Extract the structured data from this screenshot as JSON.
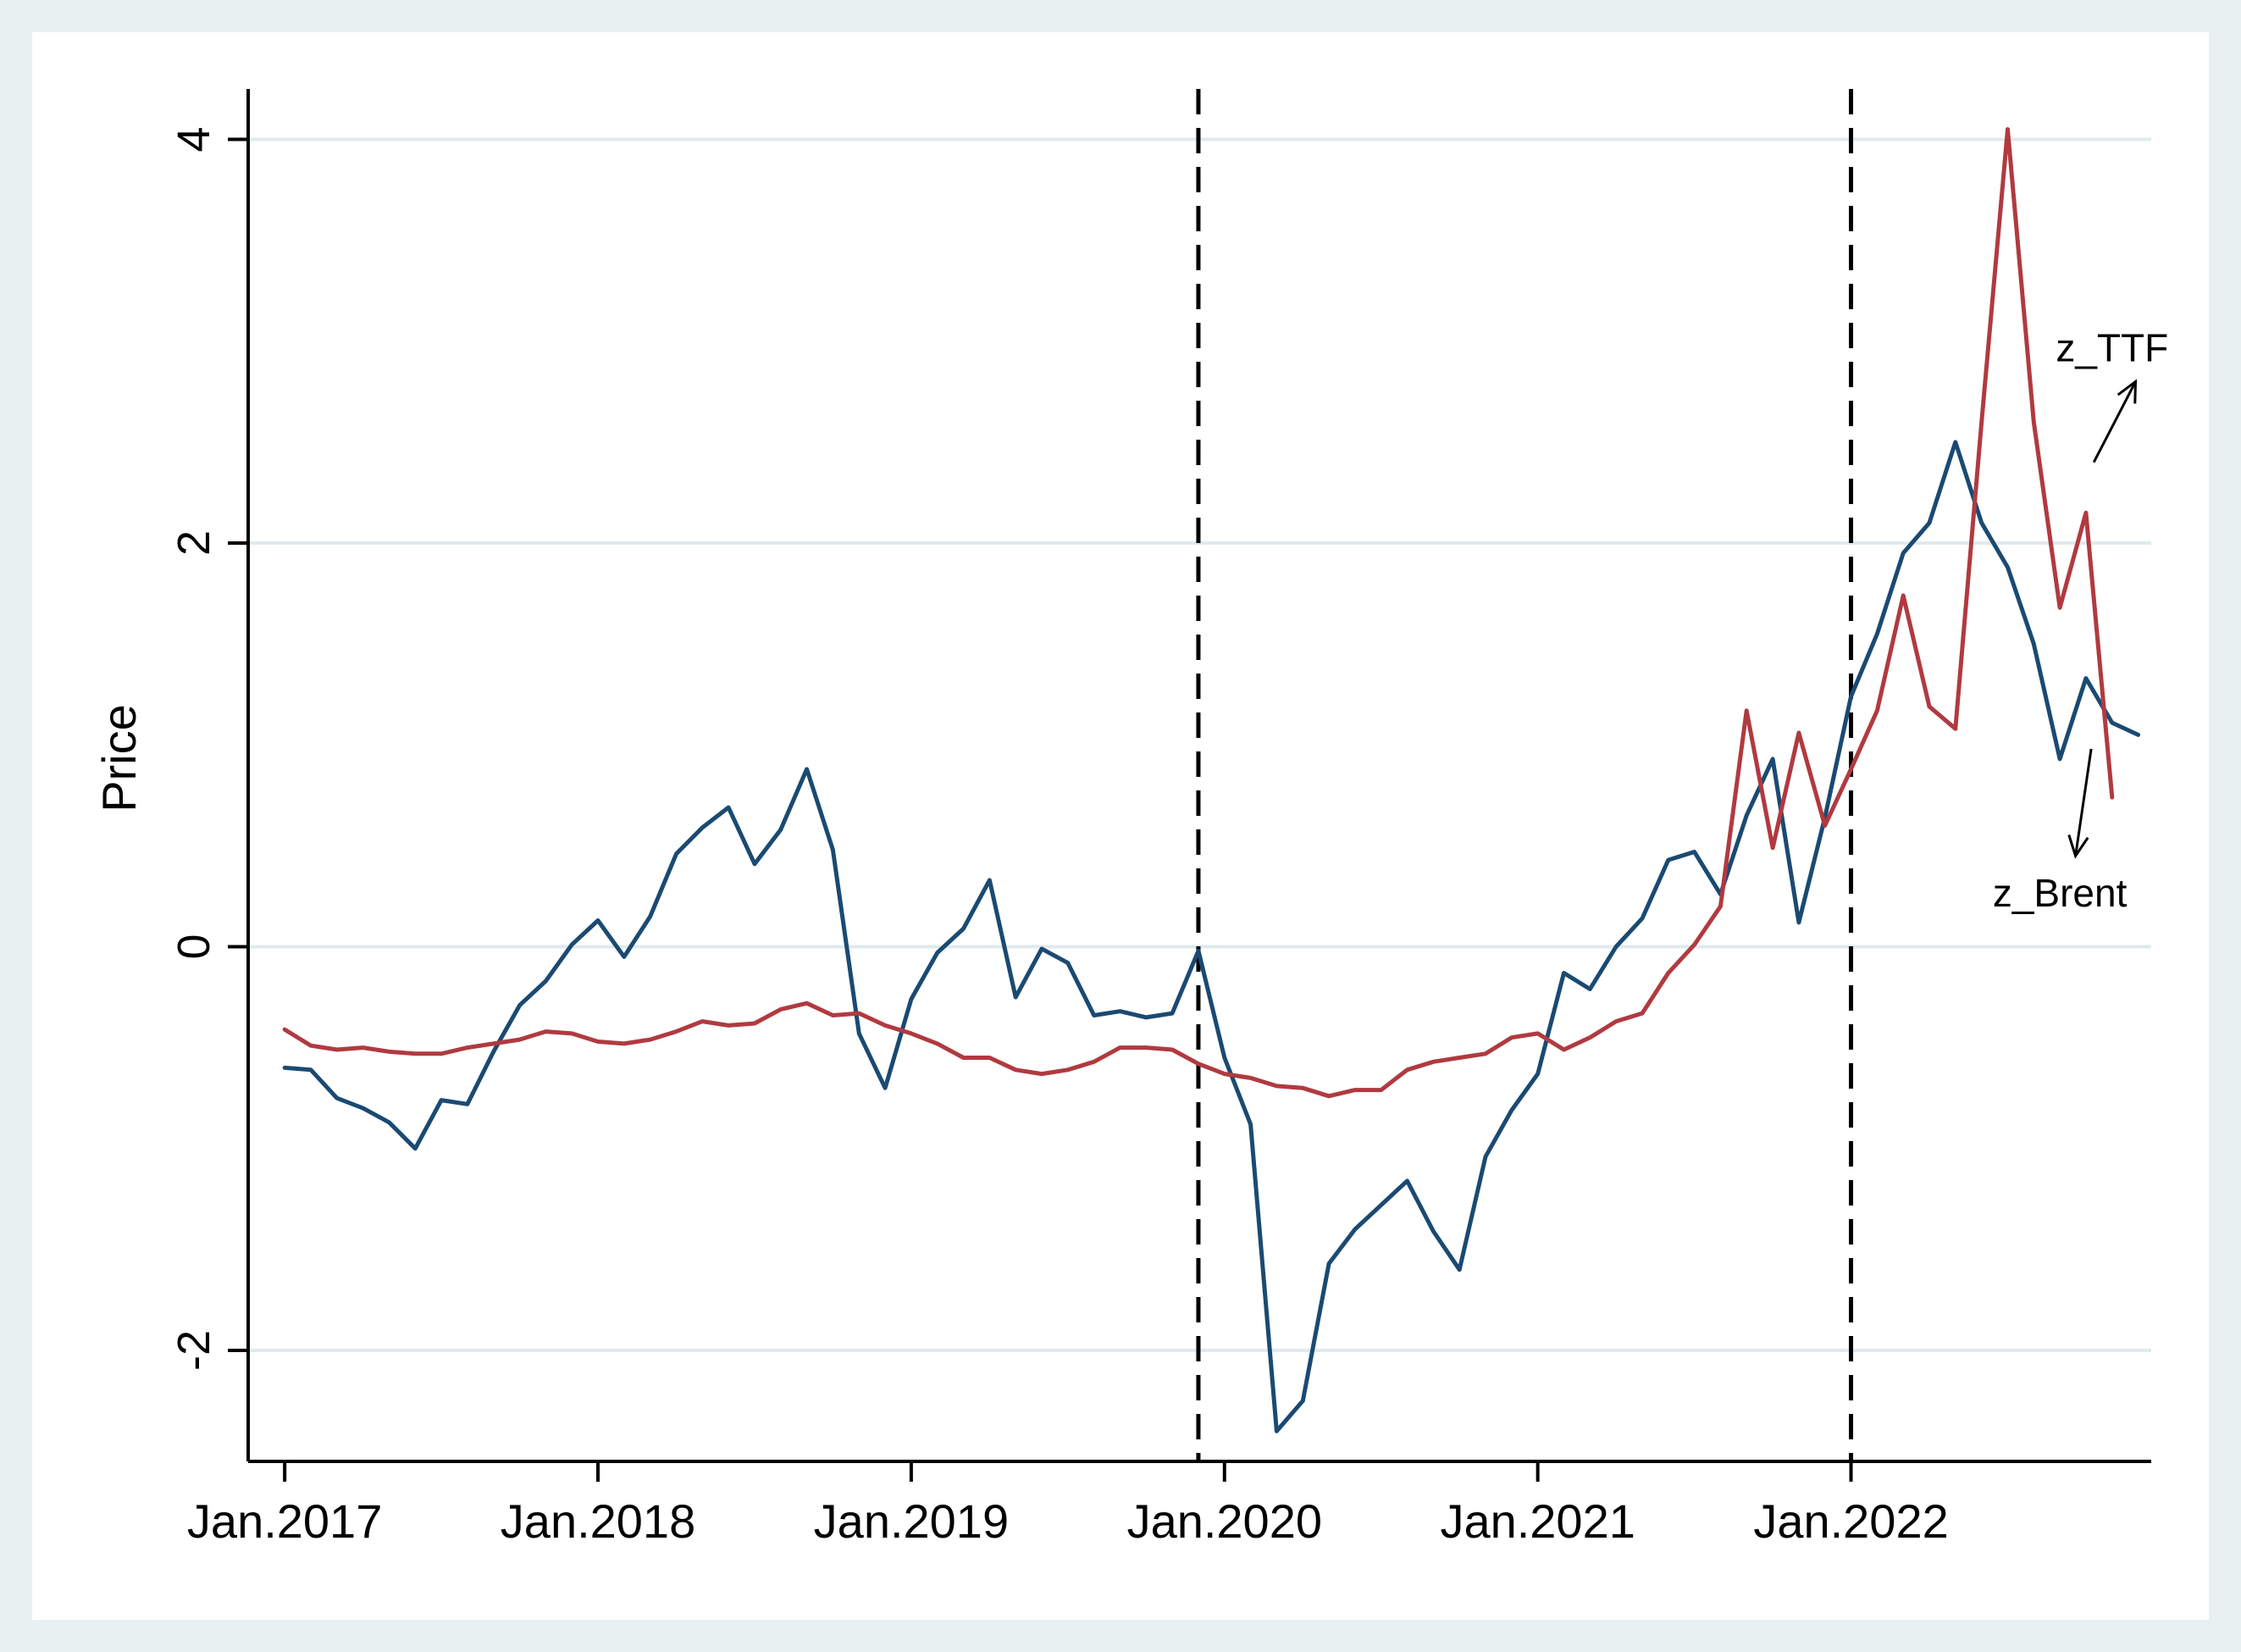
{
  "colors": {
    "outer_background": "#e8f1f1",
    "plot_background": "#ffffff",
    "grid": "#e0eaee",
    "axis": "#000000",
    "brent": "#1a4a72",
    "ttf": "#b03a40",
    "vline": "#000000"
  },
  "chart_data": {
    "type": "line",
    "title": "",
    "xlabel": "",
    "ylabel": "Price",
    "grid": true,
    "xlim": [
      -1.4,
      71.5
    ],
    "ylim": [
      -2.55,
      4.25
    ],
    "yticks": [
      -2,
      0,
      2,
      4
    ],
    "ytick_labels": [
      "-2",
      "0",
      "2",
      "4"
    ],
    "xticks": [
      0,
      12,
      24,
      36,
      48,
      60
    ],
    "xtick_labels": [
      "Jan.2017",
      "Jan.2018",
      "Jan.2019",
      "Jan.2020",
      "Jan.2021",
      "Jan.2022"
    ],
    "x_note": "x = months since Jan.2017",
    "vlines": [
      35,
      60
    ],
    "series": [
      {
        "name": "z_Brent",
        "color_key": "brent",
        "values": [
          -0.6,
          -0.61,
          -0.75,
          -0.8,
          -0.87,
          -1.0,
          -0.76,
          -0.78,
          -0.52,
          -0.29,
          -0.17,
          0.01,
          0.13,
          -0.05,
          0.15,
          0.46,
          0.59,
          0.69,
          0.41,
          0.58,
          0.88,
          0.48,
          -0.43,
          -0.7,
          -0.26,
          -0.03,
          0.09,
          0.33,
          -0.25,
          -0.01,
          -0.08,
          -0.34,
          -0.32,
          -0.35,
          -0.33,
          -0.02,
          -0.55,
          -0.88,
          -2.4,
          -2.25,
          -1.57,
          -1.4,
          -1.28,
          -1.16,
          -1.41,
          -1.6,
          -1.04,
          -0.81,
          -0.63,
          -0.13,
          -0.21,
          0.0,
          0.14,
          0.43,
          0.47,
          0.26,
          0.65,
          0.93,
          0.12,
          0.64,
          1.24,
          1.55,
          1.95,
          2.1,
          2.5,
          2.1,
          1.88,
          1.5,
          0.93,
          1.33,
          1.11,
          1.05
        ]
      },
      {
        "name": "z_TTF",
        "color_key": "ttf",
        "values": [
          -0.41,
          -0.49,
          -0.51,
          -0.5,
          -0.52,
          -0.53,
          -0.53,
          -0.5,
          -0.48,
          -0.46,
          -0.42,
          -0.43,
          -0.47,
          -0.48,
          -0.46,
          -0.42,
          -0.37,
          -0.39,
          -0.38,
          -0.31,
          -0.28,
          -0.34,
          -0.33,
          -0.39,
          -0.43,
          -0.48,
          -0.55,
          -0.55,
          -0.61,
          -0.63,
          -0.61,
          -0.57,
          -0.5,
          -0.5,
          -0.51,
          -0.58,
          -0.63,
          -0.65,
          -0.69,
          -0.7,
          -0.74,
          -0.71,
          -0.71,
          -0.61,
          -0.57,
          -0.55,
          -0.53,
          -0.45,
          -0.43,
          -0.51,
          -0.45,
          -0.37,
          -0.33,
          -0.13,
          0.01,
          0.2,
          1.17,
          0.49,
          1.06,
          0.6,
          0.88,
          1.17,
          1.74,
          1.19,
          1.08,
          2.6,
          4.05,
          2.6,
          1.68,
          2.15,
          0.74
        ]
      }
    ],
    "annotations": [
      {
        "text": "z_TTF",
        "series": "z_TTF",
        "at": [
          70,
          2.9
        ],
        "arrow_from": [
          69.3,
          2.4
        ],
        "arrow_to": [
          70.9,
          2.8
        ],
        "anchor": "middle"
      },
      {
        "text": "z_Brent",
        "series": "z_Brent",
        "at": [
          68,
          0.2
        ],
        "arrow_from": [
          69.2,
          0.98
        ],
        "arrow_to": [
          68.6,
          0.45
        ],
        "anchor": "middle"
      }
    ]
  }
}
